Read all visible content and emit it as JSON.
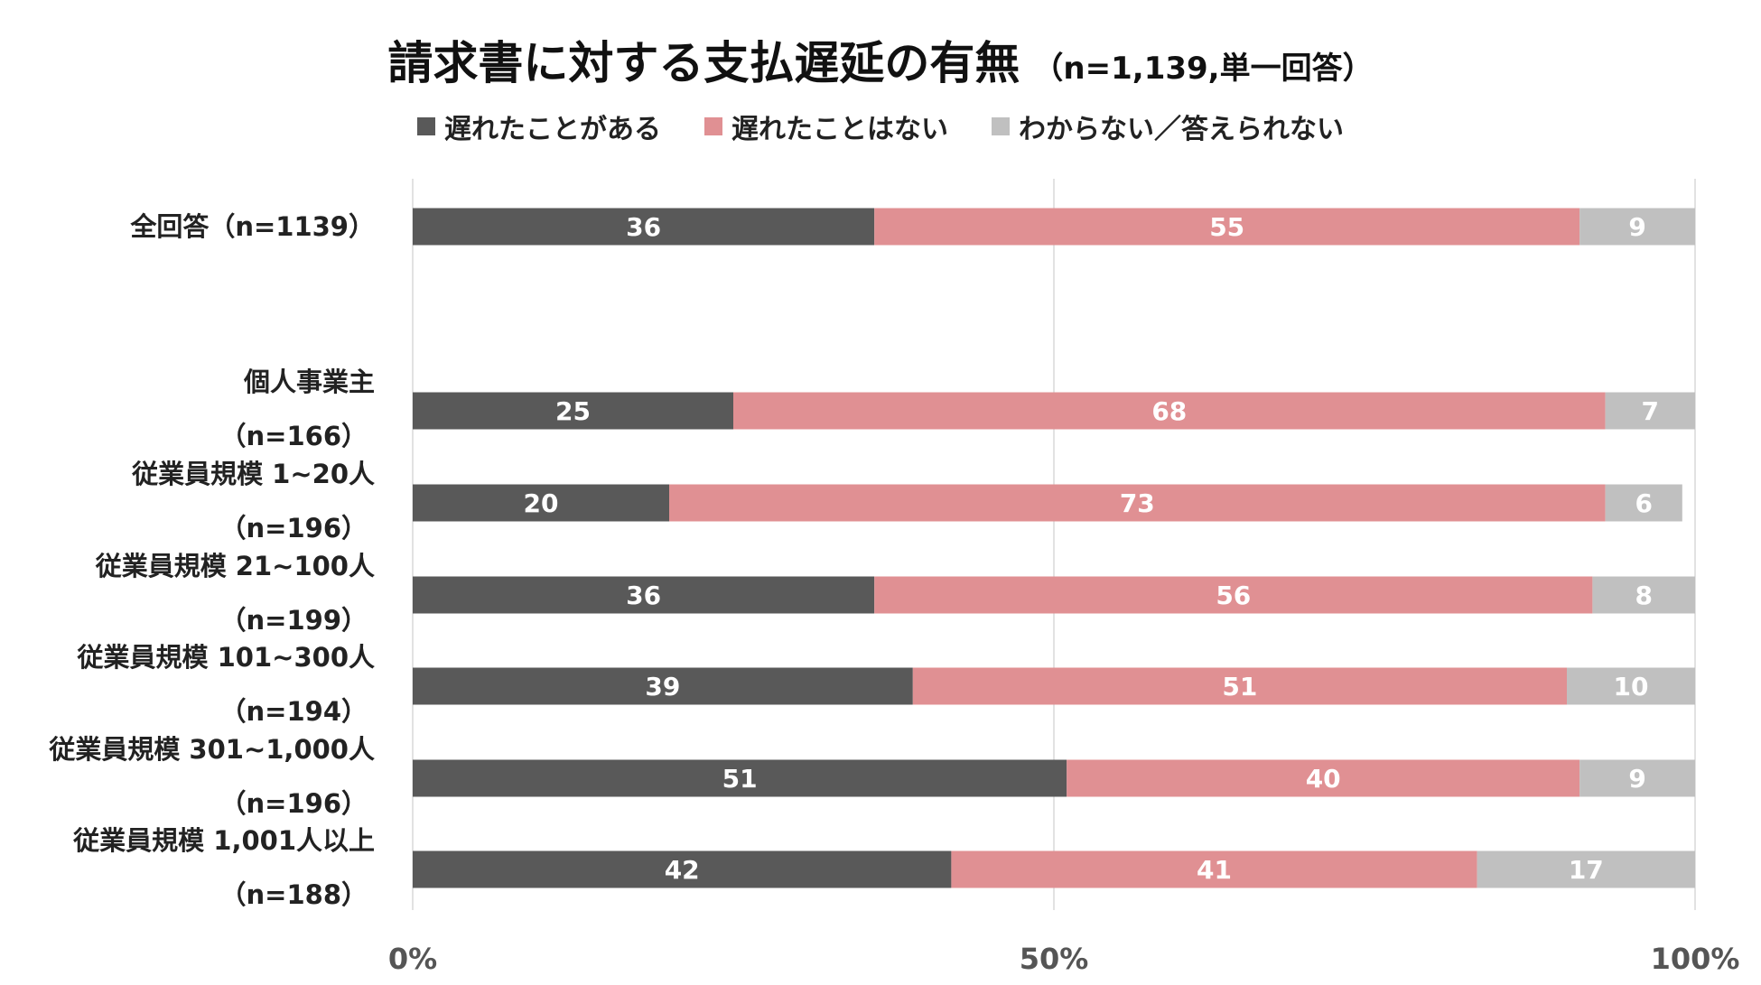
{
  "header": {
    "title": "請求書に対する支払遅延の有無",
    "subtitle": "（n=1,139,単一回答）"
  },
  "chart_data": {
    "type": "bar",
    "orientation": "horizontal",
    "stacked": true,
    "percent": true,
    "title": "請求書に対する支払遅延の有無",
    "subtitle": "（n=1,139,単一回答）",
    "categories": [
      [
        "全回答（n=1139）"
      ],
      [
        "個人事業主",
        "（n=166）"
      ],
      [
        "従業員規模 1~20人",
        "（n=196）"
      ],
      [
        "従業員規模 21~100人",
        "（n=199）"
      ],
      [
        "従業員規模 101~300人",
        "（n=194）"
      ],
      [
        "従業員規模 301~1,000人",
        "（n=196）"
      ],
      [
        "従業員規模 1,001人以上",
        "（n=188）"
      ]
    ],
    "series": [
      {
        "name": "遅れたことがある",
        "color": "#595959",
        "values": [
          36,
          25,
          20,
          36,
          39,
          51,
          42
        ]
      },
      {
        "name": "遅れたことはない",
        "color": "#e09093",
        "values": [
          55,
          68,
          73,
          56,
          51,
          40,
          41
        ]
      },
      {
        "name": "わからない／答えられない",
        "color": "#c0c0c0",
        "values": [
          9,
          7,
          6,
          8,
          10,
          9,
          17
        ]
      }
    ],
    "xlim": [
      0,
      100
    ],
    "x_ticks": [
      "0%",
      "50%",
      "100%"
    ],
    "grid": true,
    "legend_position": "top"
  }
}
